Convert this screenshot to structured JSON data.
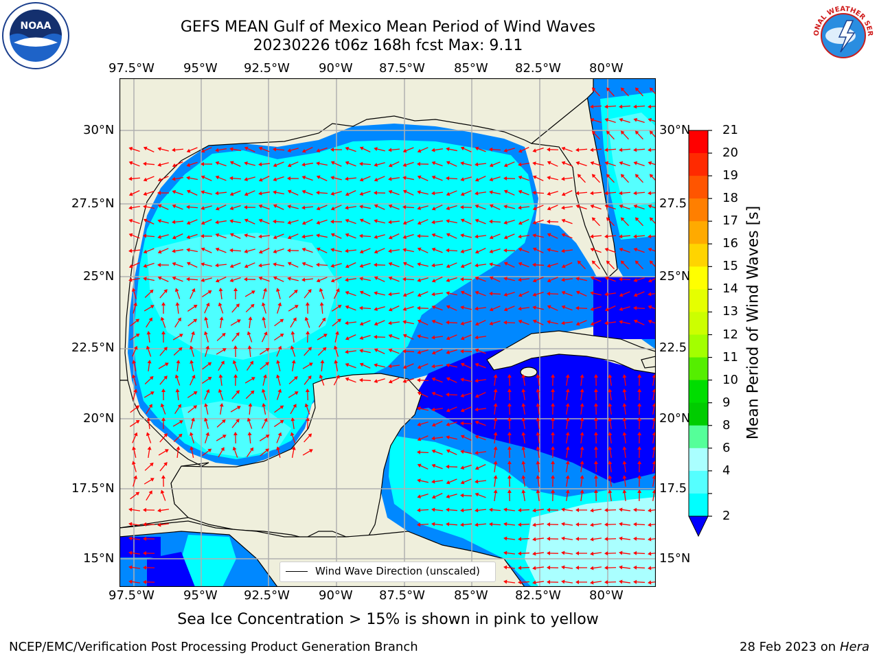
{
  "title": {
    "line1": "GEFS MEAN Gulf of Mexico Mean Period of Wind Waves",
    "line2": "20230226 t06z 168h fcst   Max: 9.11"
  },
  "axes": {
    "lon_labels": [
      "97.5°W",
      "95°W",
      "92.5°W",
      "90°W",
      "87.5°W",
      "85°W",
      "82.5°W",
      "80°W"
    ],
    "lat_labels_left": [
      "30°N",
      "27.5°N",
      "25°N",
      "22.5°N",
      "20°N",
      "17.5°N",
      "15°N"
    ],
    "lat_labels_right": [
      "30°N",
      "27.5",
      "25°N",
      "22.5",
      "20°N",
      "17.5",
      "15°N"
    ]
  },
  "legend": {
    "label": "Wind Wave Direction (unscaled)"
  },
  "colorbar": {
    "label": "Mean Period of Wind Waves [s]",
    "ticks": [
      "21",
      "20",
      "19",
      "18",
      "17",
      "16",
      "15",
      "14",
      "13",
      "12",
      "11",
      "10",
      "9",
      "8",
      "6",
      "4",
      "2"
    ],
    "colors": [
      "#ff0000",
      "#ff2a00",
      "#ff5500",
      "#ff7f00",
      "#ffaa00",
      "#ffd400",
      "#ffff00",
      "#e5ff00",
      "#ccff00",
      "#a3ff00",
      "#55ee00",
      "#00dd00",
      "#00cc00",
      "#55ff99",
      "#aaffff",
      "#55ffff",
      "#00ffff",
      "#0088ff"
    ],
    "extend_color": "#0000ff"
  },
  "map_colors": {
    "land": "#efefdc",
    "period_2_4": "#0088ff",
    "period_4_6": "#00ffff",
    "period_6_8": "#55ffff",
    "period_8_9": "#aaffff",
    "period_below_2": "#0000ff",
    "arrow": "#ff0000",
    "grid": "#b0b0b0"
  },
  "caption": "Sea Ice Concentration > 15% is shown in pink to yellow",
  "footer": {
    "left": "NCEP/EMC/Verification Post Processing Product Generation Branch",
    "right_date": "28 Feb 2023 on",
    "right_host": "Hera"
  },
  "logos": {
    "noaa_text": "NOAA",
    "nws_text": "NATIONAL WEATHER SERVICE"
  }
}
